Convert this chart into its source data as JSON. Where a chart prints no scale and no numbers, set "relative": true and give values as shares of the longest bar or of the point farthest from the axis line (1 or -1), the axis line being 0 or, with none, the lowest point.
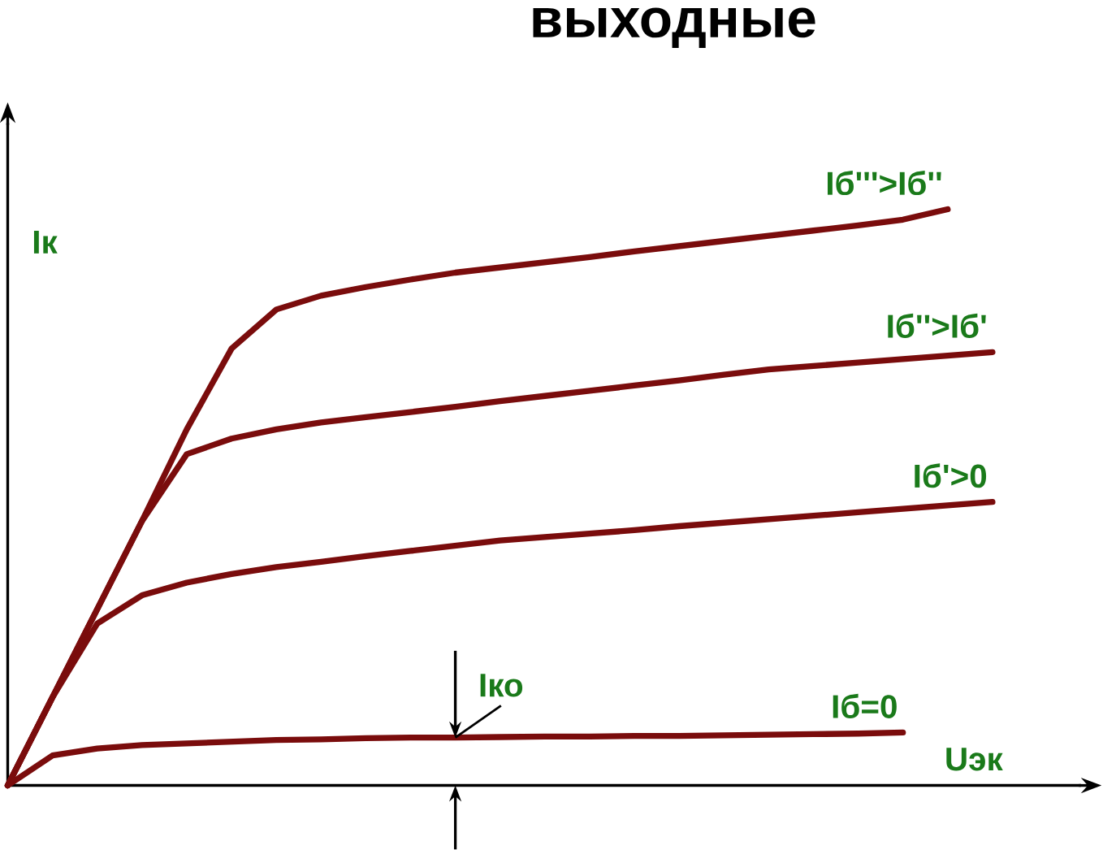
{
  "chart_data": {
    "type": "line",
    "title": "выходные",
    "xlabel": "Uэк",
    "ylabel": "Iк",
    "relative": true,
    "legend": false,
    "categories": [
      null,
      null,
      null,
      null,
      null,
      null,
      null,
      null,
      null,
      null,
      null,
      null,
      null,
      null,
      null,
      null,
      null,
      null,
      null,
      null,
      null,
      null,
      null
    ],
    "series": [
      {
        "name": "Iб'''>Iб''",
        "color": "#7a0c0c",
        "values": [
          0,
          0.153,
          0.306,
          0.459,
          0.618,
          0.758,
          0.826,
          0.85,
          0.865,
          0.878,
          0.89,
          0.899,
          0.908,
          0.917,
          0.927,
          0.936,
          0.945,
          0.954,
          0.963,
          0.972,
          0.982,
          1,
          null
        ]
      },
      {
        "name": "Iб''>Iб'",
        "color": "#7a0c0c",
        "values": [
          0,
          0.153,
          0.306,
          0.459,
          0.575,
          0.602,
          0.618,
          0.63,
          0.639,
          0.648,
          0.657,
          0.667,
          0.676,
          0.685,
          0.694,
          0.703,
          0.713,
          0.722,
          0.728,
          0.734,
          0.74,
          0.746,
          0.752
        ]
      },
      {
        "name": "Iб'>0",
        "color": "#7a0c0c",
        "values": [
          0,
          0.153,
          0.281,
          0.33,
          0.352,
          0.367,
          0.379,
          0.388,
          0.398,
          0.407,
          0.416,
          0.425,
          0.431,
          0.437,
          0.443,
          0.45,
          0.456,
          0.462,
          0.468,
          0.474,
          0.48,
          0.486,
          0.492
        ]
      },
      {
        "name": "Iб=0",
        "color": "#7a0c0c",
        "values": [
          0,
          0.052,
          0.064,
          0.07,
          0.073,
          0.076,
          0.079,
          0.08,
          0.082,
          0.083,
          0.083,
          0.084,
          0.085,
          0.085,
          0.086,
          0.086,
          0.087,
          0.088,
          0.089,
          0.09,
          0.092,
          null,
          null
        ]
      }
    ],
    "annotations": [
      "Iко"
    ]
  }
}
